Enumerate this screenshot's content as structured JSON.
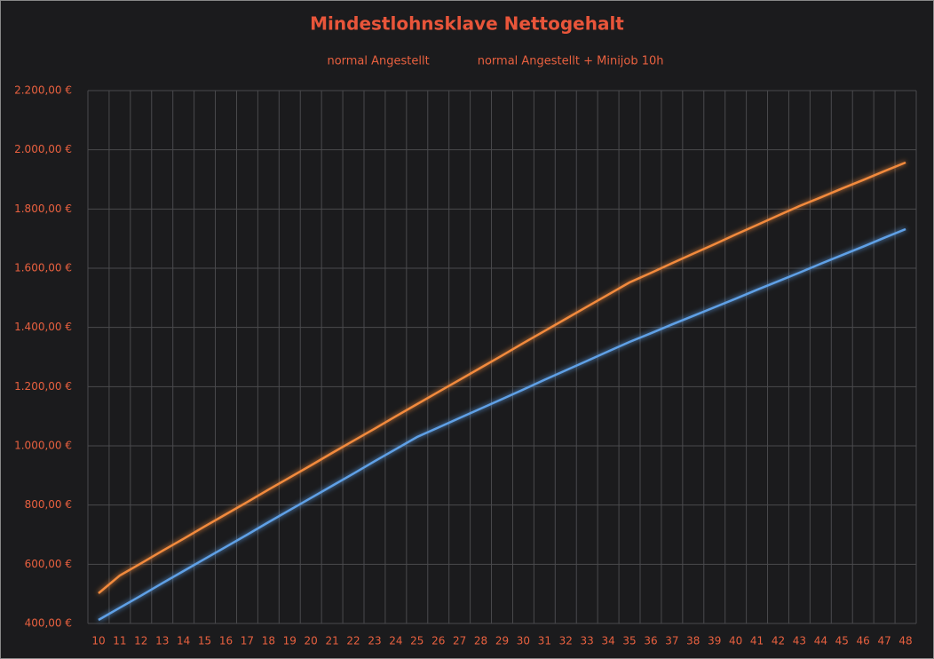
{
  "chart_data": {
    "type": "line",
    "title": "Mindestlohnsklave Nettogehalt",
    "categories": [
      "10",
      "11",
      "12",
      "13",
      "14",
      "15",
      "16",
      "17",
      "18",
      "19",
      "20",
      "21",
      "22",
      "23",
      "24",
      "25",
      "26",
      "27",
      "28",
      "29",
      "30",
      "31",
      "32",
      "33",
      "34",
      "35",
      "36",
      "37",
      "38",
      "39",
      "40",
      "41",
      "42",
      "43",
      "44",
      "45",
      "46",
      "47",
      "48"
    ],
    "series": [
      {
        "name": "normal Angestellt",
        "color": "#5fa0e6",
        "values": [
          412,
          453,
          494,
          536,
          577,
          618,
          659,
          700,
          742,
          783,
          824,
          865,
          906,
          948,
          989,
          1030,
          1062,
          1094,
          1126,
          1158,
          1190,
          1223,
          1255,
          1287,
          1319,
          1351,
          1380,
          1410,
          1439,
          1468,
          1497,
          1527,
          1556,
          1585,
          1615,
          1644,
          1673,
          1703,
          1732
        ]
      },
      {
        "name": "normal Angestellt + Minijob 10h",
        "color": "#f28a3c",
        "values": [
          502,
          562,
          603,
          645,
          686,
          728,
          769,
          810,
          852,
          893,
          934,
          976,
          1017,
          1058,
          1100,
          1141,
          1182,
          1223,
          1264,
          1305,
          1347,
          1388,
          1429,
          1470,
          1511,
          1552,
          1584,
          1617,
          1649,
          1681,
          1714,
          1746,
          1778,
          1810,
          1839,
          1869,
          1898,
          1928,
          1957
        ]
      }
    ],
    "ylim": [
      400,
      2200
    ],
    "yticks": [
      {
        "value": 400,
        "label": "400,00 €"
      },
      {
        "value": 600,
        "label": "600,00 €"
      },
      {
        "value": 800,
        "label": "800,00 €"
      },
      {
        "value": 1000,
        "label": "1.000,00 €"
      },
      {
        "value": 1200,
        "label": "1.200,00 €"
      },
      {
        "value": 1400,
        "label": "1.400,00 €"
      },
      {
        "value": 1600,
        "label": "1.600,00 €"
      },
      {
        "value": 1800,
        "label": "1.800,00 €"
      },
      {
        "value": 2000,
        "label": "2.000,00 €"
      },
      {
        "value": 2200,
        "label": "2.200,00 €"
      }
    ],
    "grid": true,
    "legend": "top"
  }
}
